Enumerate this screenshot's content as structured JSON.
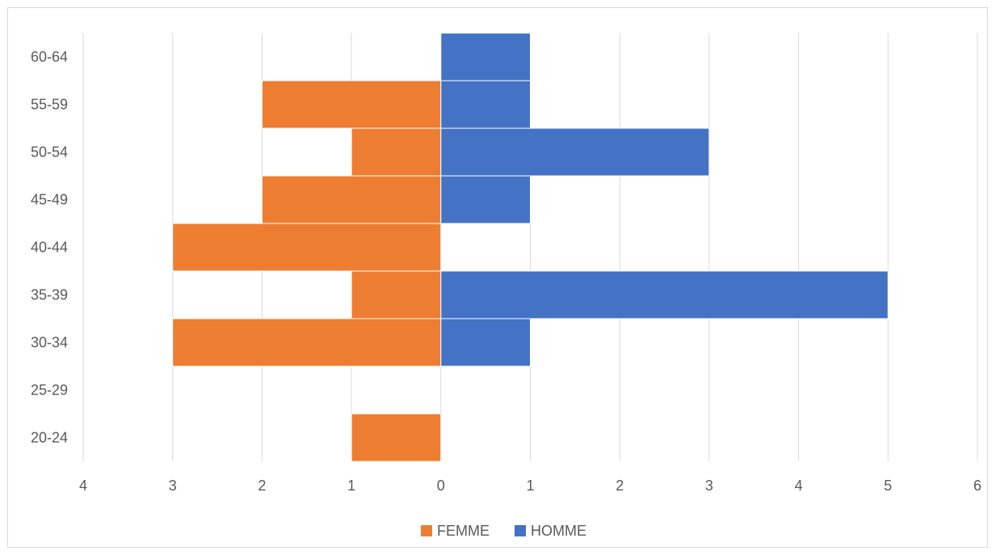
{
  "chart_data": {
    "type": "bar",
    "orientation": "horizontal",
    "subtype": "population-pyramid",
    "categories": [
      "20-24",
      "25-29",
      "30-34",
      "35-39",
      "40-44",
      "45-49",
      "50-54",
      "55-59",
      "60-64"
    ],
    "series": [
      {
        "name": "FEMME",
        "values": [
          1,
          0,
          3,
          1,
          3,
          2,
          1,
          2,
          0
        ],
        "color": "#ED7D31",
        "side": "left"
      },
      {
        "name": "HOMME",
        "values": [
          0,
          0,
          1,
          5,
          0,
          1,
          3,
          1,
          1
        ],
        "color": "#4472C4",
        "side": "right"
      }
    ],
    "x_ticks": [
      "4",
      "3",
      "2",
      "1",
      "0",
      "1",
      "2",
      "3",
      "4",
      "5",
      "6"
    ],
    "x_tick_values": [
      -4,
      -3,
      -2,
      -1,
      0,
      1,
      2,
      3,
      4,
      5,
      6
    ],
    "xlim": [
      -4,
      6
    ],
    "title": "",
    "xlabel": "",
    "ylabel": "",
    "grid": "vertical",
    "legend": "bottom"
  },
  "colors": {
    "femme": "#ED7D31",
    "homme": "#4472C4",
    "grid": "#d9d9d9",
    "text": "#595959"
  }
}
